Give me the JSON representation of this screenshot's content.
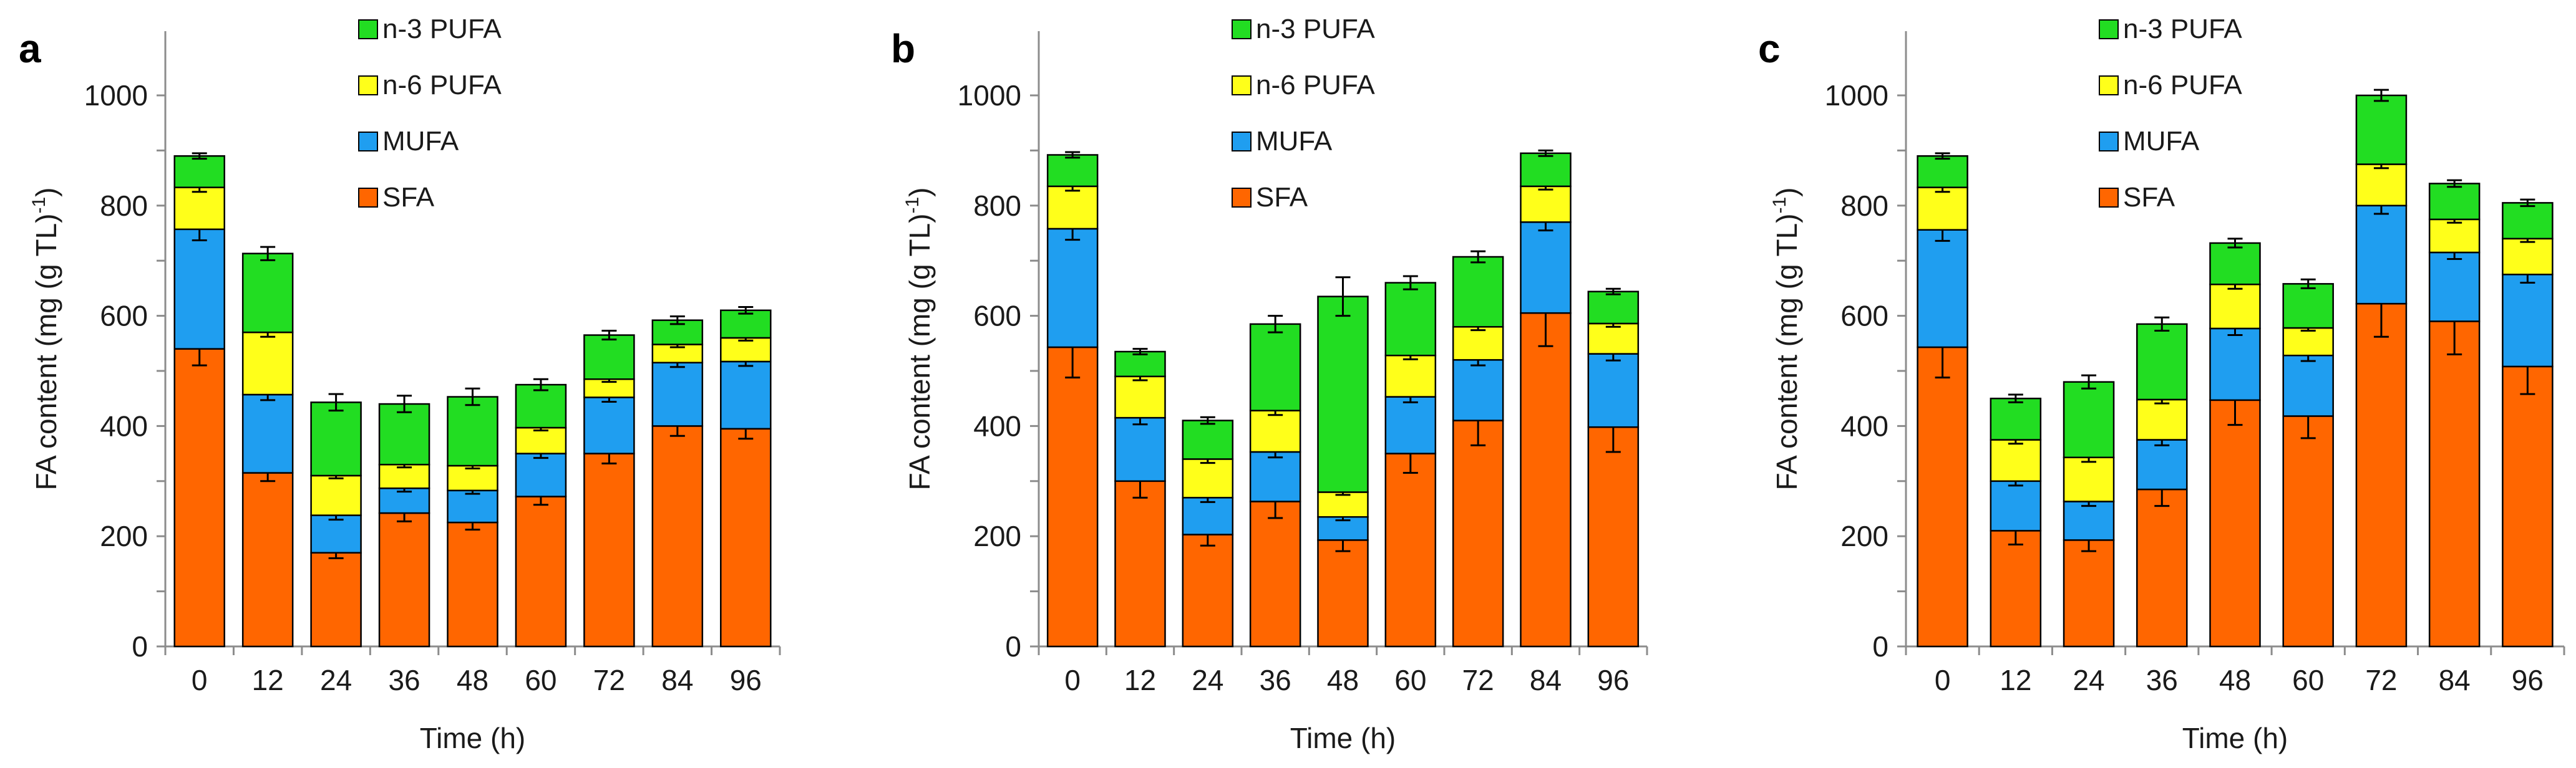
{
  "chart_data": [
    {
      "type": "bar",
      "stacked": true,
      "panel_label": "a",
      "title": "",
      "xlabel": "Time (h)",
      "ylabel": "FA content  (mg (g TL)",
      "ylabel_superscript": "-1",
      "ylabel_close": ")",
      "ylim": [
        0,
        1100
      ],
      "yticks": [
        "0",
        "200",
        "400",
        "600",
        "800",
        "1000"
      ],
      "categories": [
        "0",
        "12",
        "24",
        "36",
        "48",
        "60",
        "72",
        "84",
        "96"
      ],
      "legend": [
        "n-3 PUFA",
        "n-6 PUFA",
        "MUFA",
        "SFA"
      ],
      "legend_position": "top-center",
      "series": [
        {
          "name": "SFA",
          "values": [
            540,
            315,
            170,
            242,
            225,
            272,
            350,
            400,
            395
          ],
          "errors": [
            30,
            15,
            10,
            15,
            13,
            15,
            18,
            18,
            18
          ]
        },
        {
          "name": "MUFA",
          "values": [
            217,
            142,
            68,
            45,
            58,
            78,
            102,
            115,
            122
          ],
          "errors": [
            20,
            10,
            8,
            6,
            6,
            8,
            8,
            8,
            8
          ]
        },
        {
          "name": "n-6 PUFA",
          "values": [
            76,
            113,
            72,
            43,
            45,
            47,
            33,
            33,
            43
          ],
          "errors": [
            8,
            8,
            5,
            5,
            5,
            5,
            5,
            5,
            5
          ]
        },
        {
          "name": "n-3 PUFA",
          "values": [
            57,
            143,
            133,
            110,
            125,
            78,
            80,
            44,
            50
          ],
          "errors": [
            5,
            12,
            15,
            15,
            15,
            10,
            8,
            7,
            6
          ]
        }
      ]
    },
    {
      "type": "bar",
      "stacked": true,
      "panel_label": "b",
      "title": "",
      "xlabel": "Time (h)",
      "ylabel": "FA content (mg (g TL)",
      "ylabel_superscript": "-1",
      "ylabel_close": ")",
      "ylim": [
        0,
        1100
      ],
      "yticks": [
        "0",
        "200",
        "400",
        "600",
        "800",
        "1000"
      ],
      "categories": [
        "0",
        "12",
        "24",
        "36",
        "48",
        "60",
        "72",
        "84",
        "96"
      ],
      "legend": [
        "n-3 PUFA",
        "n-6 PUFA",
        "MUFA",
        "SFA"
      ],
      "legend_position": "top-center",
      "series": [
        {
          "name": "SFA",
          "values": [
            543,
            300,
            203,
            263,
            193,
            350,
            410,
            605,
            398
          ],
          "errors": [
            55,
            30,
            20,
            30,
            20,
            35,
            45,
            60,
            45
          ]
        },
        {
          "name": "MUFA",
          "values": [
            215,
            115,
            67,
            90,
            42,
            103,
            110,
            165,
            133
          ],
          "errors": [
            20,
            12,
            8,
            10,
            6,
            10,
            10,
            15,
            12
          ]
        },
        {
          "name": "n-6 PUFA",
          "values": [
            77,
            75,
            70,
            75,
            45,
            75,
            60,
            65,
            55
          ],
          "errors": [
            8,
            7,
            7,
            8,
            5,
            7,
            6,
            6,
            6
          ]
        },
        {
          "name": "n-3 PUFA",
          "values": [
            57,
            45,
            70,
            157,
            355,
            132,
            127,
            60,
            58
          ],
          "errors": [
            5,
            5,
            6,
            15,
            35,
            12,
            10,
            5,
            5
          ]
        }
      ]
    },
    {
      "type": "bar",
      "stacked": true,
      "panel_label": "c",
      "title": "",
      "xlabel": "Time (h)",
      "ylabel": "FA content (mg (g TL)",
      "ylabel_superscript": "-1",
      "ylabel_close": ")",
      "ylim": [
        0,
        1100
      ],
      "yticks": [
        "0",
        "200",
        "400",
        "600",
        "800",
        "1000"
      ],
      "categories": [
        "0",
        "12",
        "24",
        "36",
        "48",
        "60",
        "72",
        "84",
        "96"
      ],
      "legend": [
        "n-3 PUFA",
        "n-6 PUFA",
        "MUFA",
        "SFA"
      ],
      "legend_position": "top-center",
      "series": [
        {
          "name": "SFA",
          "values": [
            543,
            210,
            193,
            285,
            447,
            418,
            622,
            590,
            508
          ],
          "errors": [
            55,
            25,
            20,
            30,
            45,
            40,
            60,
            60,
            50
          ]
        },
        {
          "name": "MUFA",
          "values": [
            213,
            90,
            70,
            90,
            130,
            110,
            178,
            125,
            167
          ],
          "errors": [
            20,
            8,
            8,
            10,
            12,
            10,
            15,
            12,
            15
          ]
        },
        {
          "name": "n-6 PUFA",
          "values": [
            77,
            75,
            80,
            73,
            80,
            50,
            75,
            60,
            65
          ],
          "errors": [
            8,
            7,
            8,
            7,
            8,
            5,
            7,
            6,
            6
          ]
        },
        {
          "name": "n-3 PUFA",
          "values": [
            57,
            75,
            137,
            137,
            75,
            80,
            125,
            65,
            65
          ],
          "errors": [
            5,
            7,
            12,
            12,
            8,
            8,
            10,
            6,
            6
          ]
        }
      ]
    }
  ],
  "colors": {
    "SFA": "#ff6600",
    "MUFA": "#1f9ef0",
    "n-6 PUFA": "#ffff1a",
    "n-3 PUFA": "#22dd22",
    "axis": "#8c8c8c",
    "outline": "#000000"
  }
}
